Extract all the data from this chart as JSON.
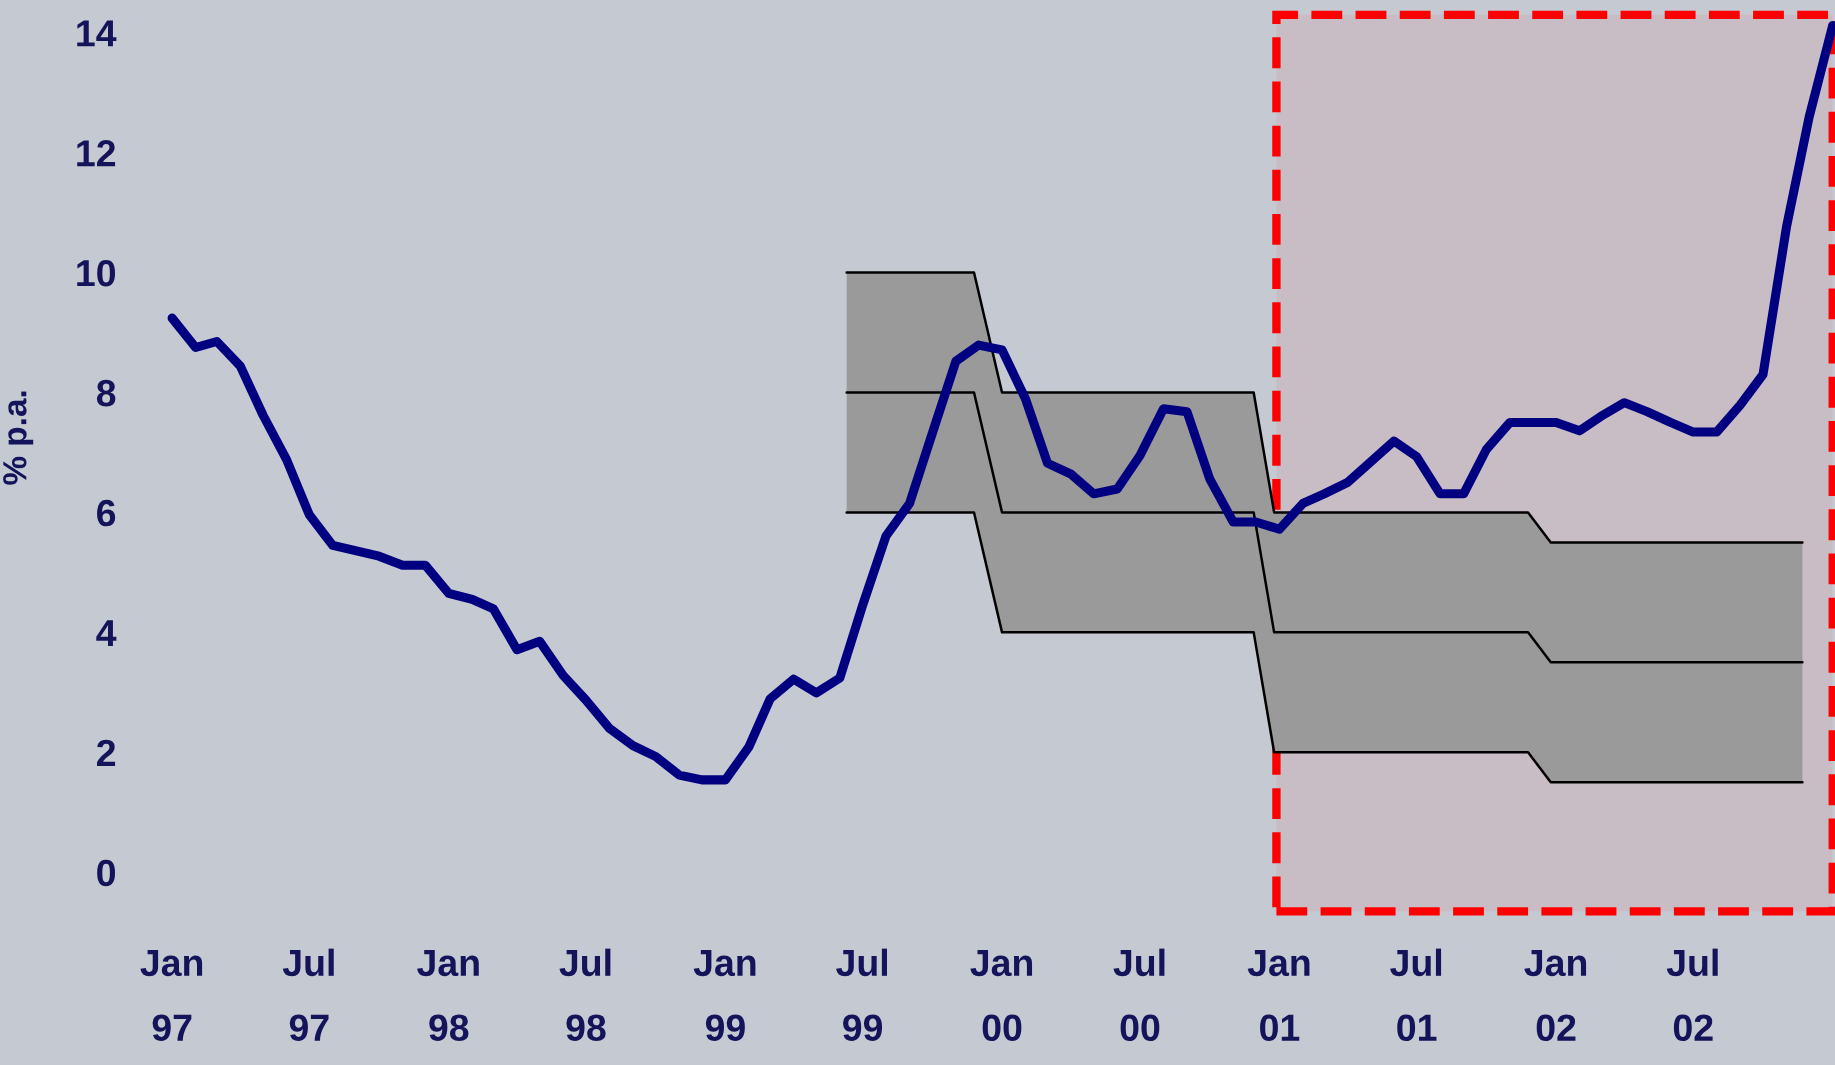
{
  "chart_data": {
    "type": "line",
    "ylabel": "% p.a.",
    "xlim": [
      "1997-01",
      "2003-01-04"
    ],
    "ylim": [
      0,
      14.5
    ],
    "yticks": [
      0,
      2,
      4,
      6,
      8,
      10,
      12,
      14
    ],
    "xticks": [
      {
        "value": "1997-01",
        "label": "Jan\n97"
      },
      {
        "value": "1997-07",
        "label": "Jul\n97"
      },
      {
        "value": "1998-01",
        "label": "Jan\n98"
      },
      {
        "value": "1998-07",
        "label": "Jul\n98"
      },
      {
        "value": "1999-01",
        "label": "Jan\n99"
      },
      {
        "value": "1999-07",
        "label": "Jul\n99"
      },
      {
        "value": "2000-01",
        "label": "Jan\n00"
      },
      {
        "value": "2000-07",
        "label": "Jul\n00"
      },
      {
        "value": "2001-01",
        "label": "Jan\n01"
      },
      {
        "value": "2001-07",
        "label": "Jul\n01"
      },
      {
        "value": "2002-01",
        "label": "Jan\n02"
      },
      {
        "value": "2002-07",
        "label": "Jul\n02"
      }
    ],
    "grid": false,
    "legend": false,
    "marker": "none",
    "line_style": "solid",
    "bands": [
      {
        "axis": "x",
        "from": "2000-12-28",
        "to": "2003-01-01",
        "color": "#ff0000"
      }
    ],
    "series": [
      {
        "color": "#000080",
        "x": [
          "1997-01",
          "1997-02",
          "1997-03",
          "1997-04",
          "1997-05",
          "1997-06",
          "1997-07",
          "1997-08",
          "1997-10",
          "1997-11",
          "1997-12",
          "1998-01",
          "1998-02",
          "1998-03",
          "1998-04",
          "1998-05",
          "1998-06",
          "1998-07",
          "1998-08",
          "1998-09",
          "1998-10",
          "1998-11",
          "1998-12",
          "1999-01",
          "1999-02",
          "1999-03",
          "1999-04",
          "1999-05",
          "1999-06",
          "1999-07",
          "1999-08",
          "1999-09",
          "1999-10",
          "1999-11",
          "1999-12",
          "2000-01",
          "2000-02",
          "2000-03",
          "2000-04",
          "2000-05",
          "2000-06",
          "2000-07",
          "2000-08",
          "2000-09",
          "2000-10",
          "2000-11",
          "2000-12",
          "2001-01",
          "2001-02",
          "2001-03",
          "2001-04",
          "2001-05",
          "2001-06",
          "2001-07",
          "2001-08",
          "2001-09",
          "2001-10",
          "2001-11",
          "2001-12",
          "2002-01",
          "2002-02",
          "2002-03",
          "2002-04",
          "2002-05",
          "2002-06",
          "2002-07",
          "2002-08",
          "2002-09",
          "2002-10",
          "2002-11",
          "2002-12",
          "2003-01"
        ],
        "values": [
          9.24,
          8.75,
          8.85,
          8.44,
          7.62,
          6.88,
          5.96,
          5.45,
          5.27,
          5.12,
          5.12,
          4.65,
          4.55,
          4.39,
          3.71,
          3.85,
          3.28,
          2.87,
          2.4,
          2.11,
          1.93,
          1.62,
          1.54,
          1.54,
          2.09,
          2.89,
          3.22,
          2.99,
          3.24,
          4.45,
          5.61,
          6.15,
          7.32,
          8.52,
          8.79,
          8.71,
          7.89,
          6.82,
          6.64,
          6.31,
          6.39,
          6.95,
          7.73,
          7.68,
          6.56,
          5.84,
          5.84,
          5.72,
          6.15,
          6.31,
          6.5,
          6.84,
          7.19,
          6.93,
          6.31,
          6.31,
          7.05,
          7.5,
          7.5,
          7.5,
          7.36,
          7.6,
          7.83,
          7.68,
          7.5,
          7.34,
          7.34,
          7.79,
          8.3,
          10.76,
          12.6,
          14.12
        ]
      },
      {
        "color": "#000000",
        "x": [
          "1999-06-10",
          "1999-11-25",
          "2000-01-01",
          "2000-11-28",
          "2000-12-25",
          "2001-11-25",
          "2001-12-25",
          "2002-11-22"
        ],
        "values": [
          8,
          8,
          6,
          6,
          4,
          4,
          3.5,
          3.5
        ],
        "lower": [
          6,
          6,
          4,
          4,
          2,
          2,
          1.5,
          1.5
        ],
        "upper": [
          10,
          10,
          8,
          8,
          6,
          6,
          5.5,
          5.5
        ]
      },
      {
        "color": "#000000",
        "x": [
          "1999-06-10",
          "1999-11-25",
          "2000-01-01",
          "2000-11-28",
          "2000-12-25",
          "2001-11-25",
          "2001-12-25",
          "2002-11-22"
        ],
        "values": [
          10,
          10,
          8,
          8,
          6,
          6,
          5.5,
          5.5
        ]
      },
      {
        "color": "#000000",
        "x": [
          "1999-06-10",
          "1999-11-25",
          "2000-01-01",
          "2000-11-28",
          "2000-12-25",
          "2001-11-25",
          "2001-12-25",
          "2002-11-22"
        ],
        "values": [
          6,
          6,
          4,
          4,
          2,
          2,
          1.5,
          1.5
        ]
      }
    ]
  }
}
